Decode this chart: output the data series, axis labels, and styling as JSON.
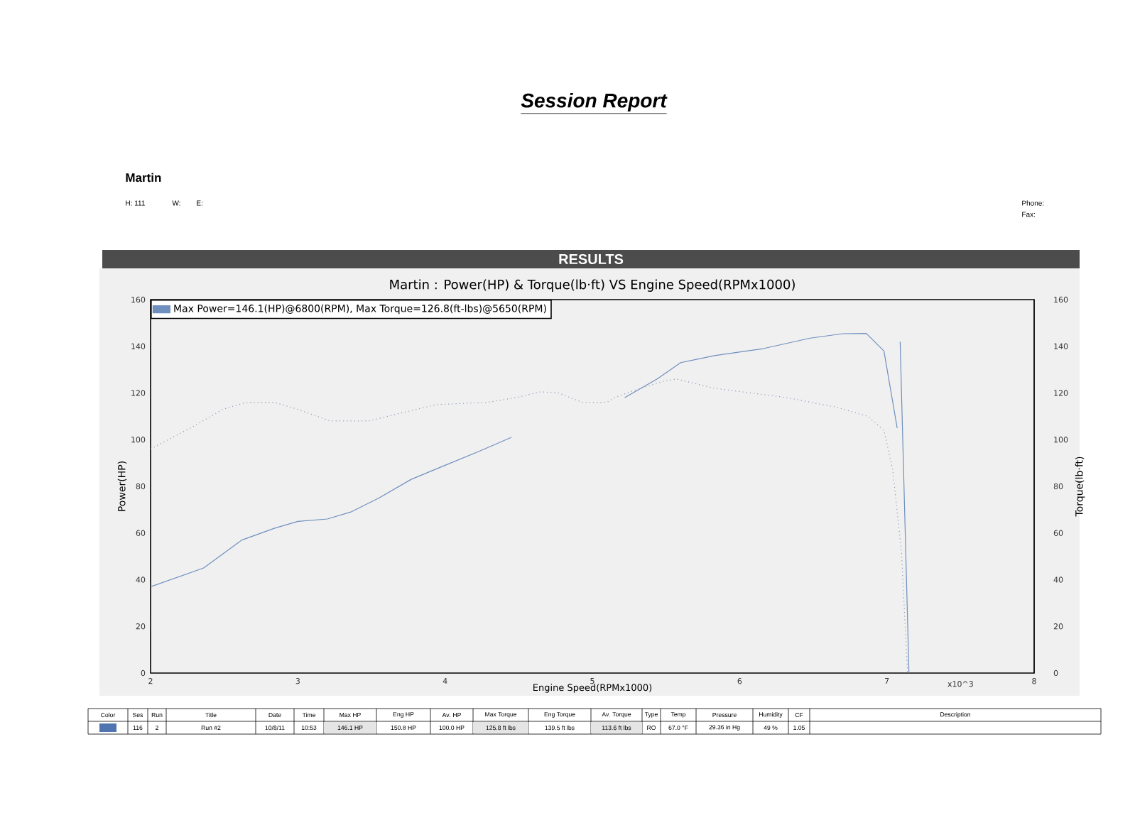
{
  "chart_data": {
    "type": "line",
    "title": "Martin : Power(HP) & Torque(lb·ft) VS Engine Speed(RPMx1000)",
    "xlabel": "Engine Speed(RPMx1000)",
    "ylabel": "Power(HP)",
    "y2label": "Torque(lb·ft)",
    "xlim": [
      2,
      8
    ],
    "xticks": [
      2,
      3,
      4,
      5,
      6,
      7,
      8
    ],
    "ylim": [
      0,
      160
    ],
    "yticks": [
      0,
      20,
      40,
      60,
      80,
      100,
      120,
      140,
      160
    ],
    "y2lim": [
      0,
      160
    ],
    "y2ticks": [
      0,
      20,
      40,
      60,
      80,
      100,
      120,
      140,
      160
    ],
    "legend": "top left",
    "series": [
      {
        "name": "Max Power=146.1(HP)@6800(RPM), Max Torque=126.8(ft-lbs)@5650(RPM)",
        "color": "#6f8fbf",
        "line_style": "solid",
        "x": [
          2.0,
          2.36,
          2.62,
          2.84,
          3.0,
          3.2,
          3.36,
          3.55,
          3.77,
          4.0,
          4.23,
          4.45,
          4.8,
          5.22,
          5.44,
          5.6,
          5.83,
          6.16,
          6.48,
          6.7,
          6.86,
          6.98,
          7.07,
          7.08,
          7.09,
          7.15
        ],
        "values": [
          37,
          45,
          57,
          62,
          65,
          66,
          69,
          75,
          83,
          89,
          95,
          101,
          null,
          118,
          126,
          133,
          136,
          139,
          143.5,
          145.4,
          145.5,
          138,
          105,
          null,
          142,
          0
        ]
      },
      {
        "color": "#8a9bb5",
        "line_style": "dotted",
        "axis": "y2",
        "x": [
          2.0,
          2.3,
          2.49,
          2.65,
          2.84,
          3.0,
          3.22,
          3.48,
          3.74,
          3.94,
          4.29,
          4.48,
          4.65,
          4.77,
          4.93,
          5.1,
          5.15,
          5.28,
          5.48,
          5.57,
          5.83,
          6.32,
          6.65,
          6.87,
          6.98,
          7.04,
          7.1,
          7.14
        ],
        "values": [
          96,
          106,
          113,
          116,
          116,
          113,
          108,
          108,
          112,
          115,
          116,
          118,
          120.5,
          120,
          116,
          116,
          118,
          121,
          125,
          126,
          122,
          118,
          114,
          110,
          104,
          87,
          51,
          0
        ]
      }
    ],
    "annotations": [
      "Session Report",
      "Martin",
      "H: 111",
      "W:",
      "E:",
      "Phone:",
      "Fax:",
      "RESULTS",
      "x10^3",
      "Color",
      "Ses",
      "Run",
      "Title",
      "Date",
      "Time",
      "Max HP",
      "Eng HP",
      "Av. HP",
      "Max Torque",
      "Eng Torque",
      "Av. Torque",
      "Type",
      "Temp",
      "Pressure",
      "Humidity",
      "CF",
      "Description",
      "116",
      "2",
      "Run #2",
      "10/8/11",
      "10:53",
      "146.1 HP",
      "150.8 HP",
      "100.0 HP",
      "125.8 ft lbs",
      "139.5 ft lbs",
      "113.6 ft lbs",
      "RO",
      "67.0 °F",
      "29.36 in Hg",
      "49 %",
      "1.05"
    ]
  }
}
